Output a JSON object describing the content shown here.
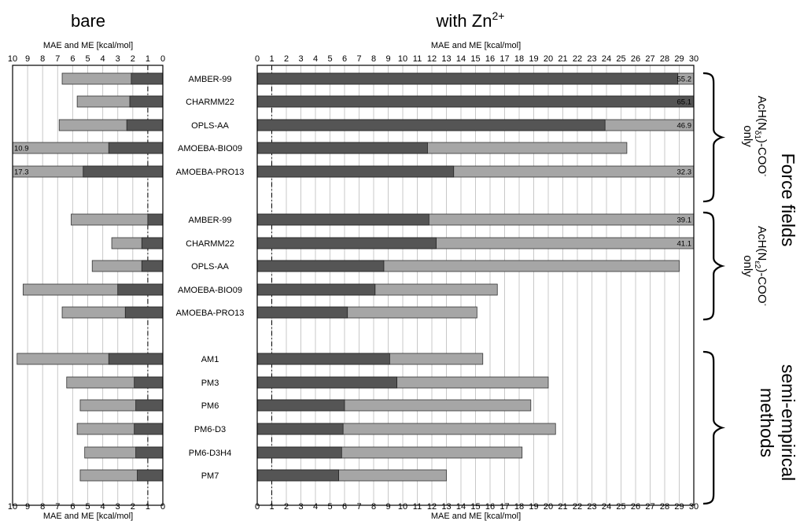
{
  "chart_data": {
    "type": "bar",
    "orientation": "horizontal",
    "panels": [
      {
        "title": "bare",
        "title_sup": "",
        "xlabel": "MAE and ME [kcal/mol]",
        "xlim": [
          10,
          0
        ],
        "ticks": [
          10,
          9,
          8,
          7,
          6,
          5,
          4,
          3,
          2,
          1,
          0
        ]
      },
      {
        "title": "with Zn",
        "title_sup": "2+",
        "xlabel": "MAE and ME [kcal/mol]",
        "xlim": [
          0,
          30
        ],
        "ticks": [
          0,
          1,
          2,
          3,
          4,
          5,
          6,
          7,
          8,
          9,
          10,
          11,
          12,
          13,
          14,
          15,
          16,
          17,
          18,
          19,
          20,
          21,
          22,
          23,
          24,
          25,
          26,
          27,
          28,
          29,
          30
        ]
      }
    ],
    "reference_line": 1,
    "series": [
      {
        "name": "MAE",
        "color": "#a6a6a6"
      },
      {
        "name": "ME",
        "color": "#555555"
      }
    ],
    "rows": [
      {
        "label": "AMBER-99",
        "bare_mae": 6.7,
        "bare_me": 2.1,
        "zn_mae": 30,
        "zn_me": 28.9,
        "zn_annot": "55.2",
        "bare_annot": ""
      },
      {
        "label": "CHARMM22",
        "bare_mae": 5.7,
        "bare_me": 2.2,
        "zn_mae": 30,
        "zn_me": 30,
        "zn_annot": "65.1",
        "bare_annot": ""
      },
      {
        "label": "OPLS-AA",
        "bare_mae": 6.9,
        "bare_me": 2.4,
        "zn_mae": 30,
        "zn_me": 23.9,
        "zn_annot": "46.9",
        "bare_annot": ""
      },
      {
        "label": "AMOEBA-BIO09",
        "bare_mae": 10,
        "bare_me": 3.6,
        "zn_mae": 25.4,
        "zn_me": 11.7,
        "zn_annot": "",
        "bare_annot": "10.9"
      },
      {
        "label": "AMOEBA-PRO13",
        "bare_mae": 10,
        "bare_me": 5.3,
        "zn_mae": 30,
        "zn_me": 13.5,
        "zn_annot": "32.3",
        "bare_annot": "17.3"
      },
      {
        "label": "AMBER-99",
        "bare_mae": 6.1,
        "bare_me": 1.0,
        "zn_mae": 30,
        "zn_me": 11.8,
        "zn_annot": "39.1",
        "bare_annot": ""
      },
      {
        "label": "CHARMM22",
        "bare_mae": 3.4,
        "bare_me": 1.4,
        "zn_mae": 30,
        "zn_me": 12.3,
        "zn_annot": "41.1",
        "bare_annot": ""
      },
      {
        "label": "OPLS-AA",
        "bare_mae": 4.7,
        "bare_me": 1.4,
        "zn_mae": 29.0,
        "zn_me": 8.7,
        "zn_annot": "",
        "bare_annot": ""
      },
      {
        "label": "AMOEBA-BIO09",
        "bare_mae": 9.3,
        "bare_me": 3.0,
        "zn_mae": 16.5,
        "zn_me": 8.1,
        "zn_annot": "",
        "bare_annot": ""
      },
      {
        "label": "AMOEBA-PRO13",
        "bare_mae": 6.7,
        "bare_me": 2.5,
        "zn_mae": 15.1,
        "zn_me": 6.2,
        "zn_annot": "",
        "bare_annot": ""
      },
      {
        "label": "AM1",
        "bare_mae": 9.7,
        "bare_me": 3.6,
        "zn_mae": 15.5,
        "zn_me": 9.1,
        "zn_annot": "",
        "bare_annot": ""
      },
      {
        "label": "PM3",
        "bare_mae": 6.4,
        "bare_me": 1.9,
        "zn_mae": 20.0,
        "zn_me": 9.6,
        "zn_annot": "",
        "bare_annot": ""
      },
      {
        "label": "PM6",
        "bare_mae": 5.5,
        "bare_me": 1.8,
        "zn_mae": 18.8,
        "zn_me": 6.0,
        "zn_annot": "",
        "bare_annot": ""
      },
      {
        "label": "PM6-D3",
        "bare_mae": 5.7,
        "bare_me": 1.9,
        "zn_mae": 20.5,
        "zn_me": 5.9,
        "zn_annot": "",
        "bare_annot": ""
      },
      {
        "label": "PM6-D3H4",
        "bare_mae": 5.2,
        "bare_me": 1.8,
        "zn_mae": 18.2,
        "zn_me": 5.8,
        "zn_annot": "",
        "bare_annot": ""
      },
      {
        "label": "PM7",
        "bare_mae": 5.5,
        "bare_me": 1.7,
        "zn_mae": 13.0,
        "zn_me": 5.6,
        "zn_annot": "",
        "bare_annot": ""
      }
    ],
    "groups": [
      {
        "label_prefix": "AcH(N",
        "label_sub": "δ1",
        "label_suffix": ")-COO",
        "label_sup": "-",
        "label_line2": "only",
        "rows": [
          0,
          4
        ]
      },
      {
        "label_prefix": "AcH(N",
        "label_sub": "ε2",
        "label_suffix": ")-COO",
        "label_sup": "-",
        "label_line2": "only",
        "rows": [
          5,
          9
        ]
      },
      {
        "label_line1": "semi-empirical",
        "label_line2": "methods",
        "rows": [
          10,
          15
        ]
      }
    ],
    "category_labels": [
      "Force fields"
    ],
    "grid": true
  }
}
